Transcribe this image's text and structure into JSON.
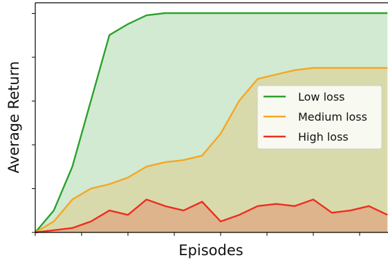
{
  "chart_data": {
    "type": "area",
    "title": "",
    "xlabel": "Episodes",
    "ylabel": "Average Return",
    "x": [
      0,
      1,
      2,
      3,
      4,
      5,
      6,
      7,
      8,
      9,
      10,
      11,
      12,
      13,
      14,
      15,
      16,
      17,
      18,
      19
    ],
    "xlim": [
      0,
      19
    ],
    "ylim": [
      0,
      100
    ],
    "x_tick_labels": false,
    "y_tick_labels": false,
    "grid": false,
    "legend_position": "center-right",
    "series": [
      {
        "name": "Low loss",
        "color": "#2ca02c",
        "values": [
          0,
          10,
          30,
          60,
          90,
          95,
          99,
          100,
          100,
          100,
          100,
          100,
          100,
          100,
          100,
          100,
          100,
          100,
          100,
          100
        ]
      },
      {
        "name": "Medium loss",
        "color": "#f5a623",
        "values": [
          0,
          5,
          15,
          20,
          22,
          25,
          30,
          32,
          33,
          35,
          45,
          60,
          70,
          72,
          74,
          75,
          75,
          75,
          75,
          75
        ]
      },
      {
        "name": "High loss",
        "color": "#ee2c1f",
        "values": [
          0,
          1,
          2,
          5,
          10,
          8,
          15,
          12,
          10,
          14,
          5,
          8,
          12,
          13,
          12,
          15,
          9,
          10,
          12,
          8
        ]
      }
    ]
  }
}
